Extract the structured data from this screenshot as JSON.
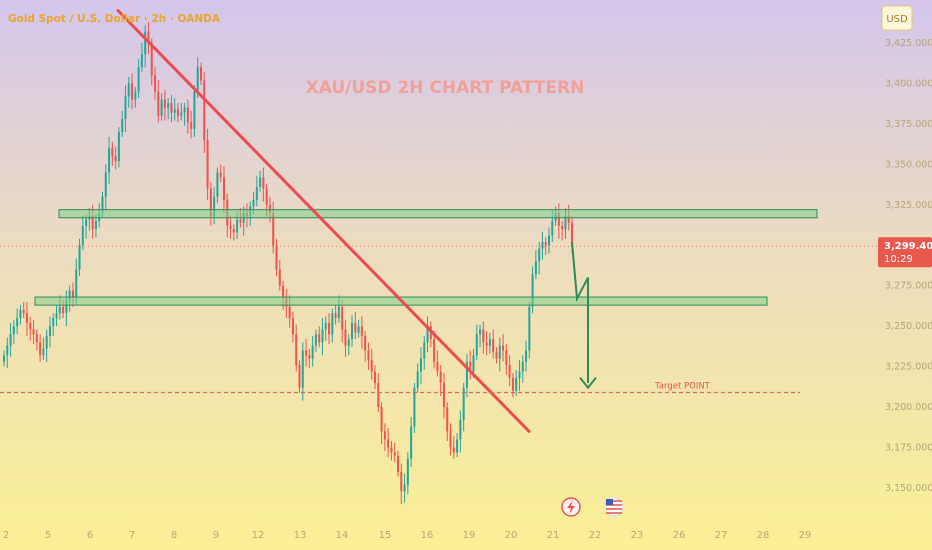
{
  "header": {
    "symbol_label": "Gold Spot / U.S. Dollar · 2h · OANDA",
    "currency_button": "USD"
  },
  "colors": {
    "bg_top": "#d4c6ec",
    "bg_bottom": "#fbf095",
    "up": "#26a69a",
    "down": "#ef5350",
    "trendline": "#ef4a4d",
    "zone_fill": "#7fcf8a",
    "zone_border": "#2e8b57",
    "price_tag_bg": "#e8584c",
    "target_line": "#e06464",
    "arrow": "#2e8b57",
    "title_color": "#f2a09a",
    "axis_text": "#b8a57a"
  },
  "icons": {
    "event_flash": "flash-icon",
    "event_flag": "us-flag-icon"
  },
  "chart_data": {
    "type": "candlestick",
    "title": "XAU/USD 2H CHART PATTERN",
    "ylim": [
      3135,
      3440
    ],
    "y_ticks": [
      3150,
      3175,
      3200,
      3225,
      3250,
      3275,
      3300,
      3325,
      3350,
      3375,
      3400,
      3425
    ],
    "y_tick_labels": [
      "3,150.000",
      "3,175.000",
      "3,200.000",
      "3,225.000",
      "3,250.000",
      "3,275.000",
      "3,300.000",
      "3,325.000",
      "3,350.000",
      "3,375.000",
      "3,400.000",
      "3,425.000"
    ],
    "x_tick_labels": [
      "2",
      "5",
      "6",
      "7",
      "8",
      "9",
      "12",
      "13",
      "14",
      "15",
      "16",
      "19",
      "20",
      "21",
      "22",
      "23",
      "26",
      "27",
      "28",
      "29"
    ],
    "current_price": 3299.405,
    "current_price_label": "3,299.405",
    "countdown_label": "10:29",
    "annotations": {
      "target_label": "Target POINT",
      "target_price": 3209,
      "resistance_zone": [
        3317,
        3322
      ],
      "support_zone": [
        3263,
        3268
      ],
      "trendline_from": 3445,
      "trendline_to": 3185
    },
    "closes": [
      3232,
      3238,
      3245,
      3250,
      3255,
      3260,
      3258,
      3252,
      3248,
      3245,
      3240,
      3232,
      3236,
      3244,
      3250,
      3255,
      3258,
      3262,
      3258,
      3266,
      3272,
      3268,
      3285,
      3300,
      3312,
      3316,
      3318,
      3310,
      3315,
      3320,
      3330,
      3345,
      3360,
      3355,
      3352,
      3370,
      3378,
      3392,
      3400,
      3390,
      3395,
      3410,
      3418,
      3432,
      3425,
      3405,
      3395,
      3380,
      3390,
      3385,
      3388,
      3382,
      3384,
      3380,
      3382,
      3385,
      3376,
      3372,
      3395,
      3410,
      3402,
      3365,
      3335,
      3318,
      3330,
      3345,
      3342,
      3328,
      3312,
      3310,
      3308,
      3316,
      3314,
      3320,
      3318,
      3324,
      3328,
      3336,
      3342,
      3335,
      3325,
      3320,
      3300,
      3285,
      3275,
      3268,
      3262,
      3255,
      3245,
      3226,
      3212,
      3235,
      3232,
      3230,
      3238,
      3245,
      3240,
      3248,
      3252,
      3245,
      3258,
      3255,
      3262,
      3248,
      3238,
      3242,
      3252,
      3246,
      3250,
      3244,
      3235,
      3229,
      3222,
      3215,
      3200,
      3185,
      3180,
      3175,
      3172,
      3170,
      3160,
      3148,
      3152,
      3168,
      3188,
      3212,
      3222,
      3230,
      3240,
      3250,
      3242,
      3228,
      3222,
      3215,
      3200,
      3185,
      3175,
      3172,
      3180,
      3192,
      3212,
      3228,
      3222,
      3232,
      3245,
      3248,
      3240,
      3238,
      3242,
      3234,
      3230,
      3238,
      3235,
      3226,
      3218,
      3210,
      3218,
      3222,
      3228,
      3235,
      3262,
      3282,
      3290,
      3298,
      3302,
      3300,
      3306,
      3315,
      3320,
      3312,
      3310,
      3318,
      3314,
      3299
    ]
  }
}
